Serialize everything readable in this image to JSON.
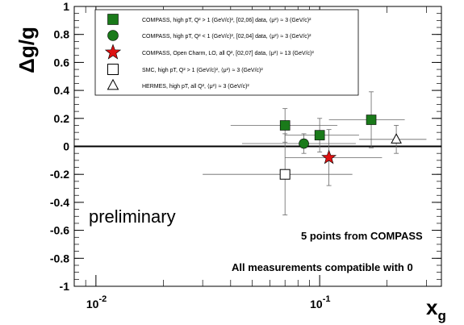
{
  "chart_data": {
    "type": "scatter",
    "title": "",
    "xlabel": "x",
    "xlabel_sub": "g",
    "ylabel": "Δg/g",
    "xscale": "log",
    "xlim": [
      0.008,
      0.35
    ],
    "ylim": [
      -1,
      1
    ],
    "yticks": [
      {
        "value": 1,
        "label": "1"
      },
      {
        "value": 0.8,
        "label": "0.8"
      },
      {
        "value": 0.6,
        "label": "0.6"
      },
      {
        "value": 0.4,
        "label": "0.4"
      },
      {
        "value": 0.2,
        "label": "0.2"
      },
      {
        "value": 0,
        "label": "0"
      },
      {
        "value": -0.2,
        "label": "-0.2"
      },
      {
        "value": -0.4,
        "label": "-0.4"
      },
      {
        "value": -0.6,
        "label": "-0.6"
      },
      {
        "value": -0.8,
        "label": "-0.8"
      },
      {
        "value": -1,
        "label": "-1"
      }
    ],
    "xticks": [
      {
        "value": 0.01,
        "base": "10",
        "exp": "-2"
      },
      {
        "value": 0.1,
        "base": "10",
        "exp": "-1"
      }
    ],
    "grid": false,
    "legend": "top-left",
    "series": [
      {
        "name": "COMPASS, high pT, Q² > 1 (GeV/c)², [02,06] data, ⟨μ²⟩ ≈ 3 (GeV/c)²",
        "marker": "square",
        "color": "#1a7a1a",
        "points": [
          {
            "x": 0.07,
            "y": 0.15,
            "xerr": [
              0.03,
              0.05
            ],
            "yerr": 0.12
          },
          {
            "x": 0.1,
            "y": 0.08,
            "xerr": [
              0.03,
              0.05
            ],
            "yerr": 0.12
          },
          {
            "x": 0.17,
            "y": 0.19,
            "xerr": [
              0.06,
              0.07
            ],
            "yerr": 0.2
          }
        ]
      },
      {
        "name": "COMPASS, high pT, Q² < 1 (GeV/c)², [02,04] data, ⟨μ²⟩ ≈ 3 (GeV/c)²",
        "marker": "circle",
        "color": "#1a7a1a",
        "points": [
          {
            "x": 0.085,
            "y": 0.02,
            "xerr": [
              0.04,
              0.06
            ],
            "yerr": 0.07
          }
        ]
      },
      {
        "name": "COMPASS, Open Charm, LO, all Q², [02,07] data, ⟨μ²⟩ ≈ 13 (GeV/c)²",
        "marker": "star",
        "color": "#dd1111",
        "points": [
          {
            "x": 0.11,
            "y": -0.08,
            "xerr": [
              0.04,
              0.08
            ],
            "yerr": 0.2
          }
        ]
      },
      {
        "name": "SMC, high pT, Q² > 1 (GeV/c)², ⟨μ²⟩ ≈ 3 (GeV/c)²",
        "marker": "open-square",
        "color": "#000000",
        "points": [
          {
            "x": 0.07,
            "y": -0.2,
            "xerr": [
              0.04,
              0.07
            ],
            "yerr": 0.29
          }
        ]
      },
      {
        "name": "HERMES, high pT, all Q², ⟨μ²⟩ ≈ 3 (GeV/c)²",
        "marker": "open-triangle",
        "color": "#000000",
        "points": [
          {
            "x": 0.22,
            "y": 0.05,
            "xerr": [
              0.07,
              0.08
            ],
            "yerr": 0.1
          }
        ]
      }
    ],
    "annotations": {
      "preliminary": "preliminary",
      "points_note": "5 points from COMPASS",
      "compat_note": "All measurements  compatible with 0"
    }
  }
}
